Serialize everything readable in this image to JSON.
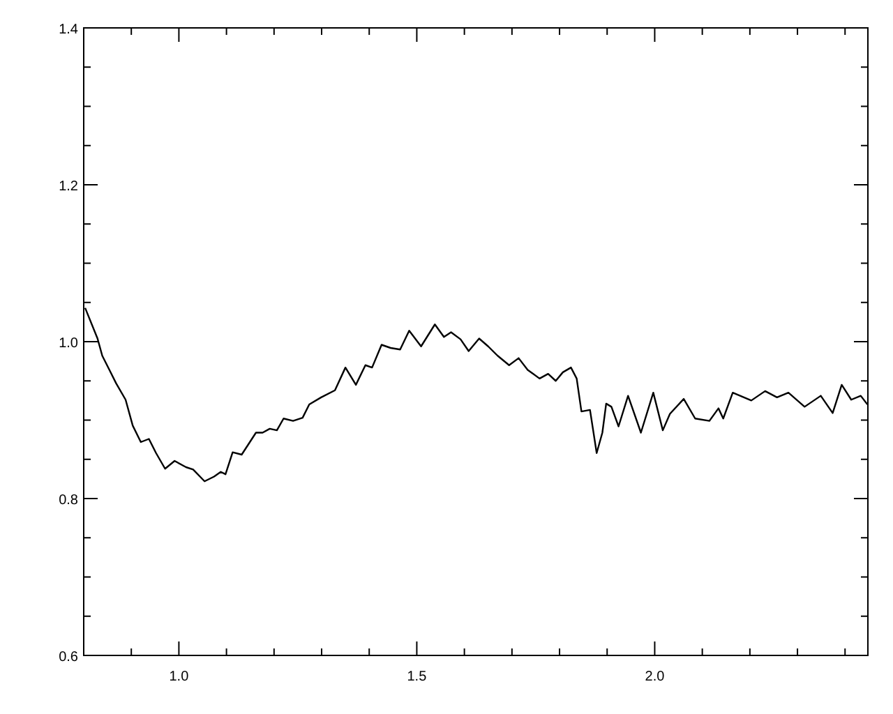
{
  "chart_data": {
    "type": "line",
    "xlim": [
      0.8,
      2.448
    ],
    "ylim": [
      0.6,
      1.4
    ],
    "xticks": [
      {
        "value": 0.9,
        "label": null
      },
      "1.0",
      {
        "value": 1.1,
        "label": null
      },
      {
        "value": 1.2,
        "label": null
      },
      {
        "value": 1.3,
        "label": null
      },
      {
        "value": 1.4,
        "label": null
      },
      {
        "value": 1.5,
        "label": "1.5"
      },
      {
        "value": 1.6,
        "label": null
      },
      {
        "value": 1.7,
        "label": null
      },
      {
        "value": 1.8,
        "label": null
      },
      {
        "value": 1.9,
        "label": null
      },
      {
        "value": 2.0,
        "label": "2.0"
      },
      {
        "value": 2.1,
        "label": null
      },
      {
        "value": 2.2,
        "label": null
      },
      {
        "value": 2.3,
        "label": null
      },
      {
        "value": 2.4,
        "label": null
      }
    ],
    "yticks": [
      {
        "value": 0.6,
        "label": "0.6"
      },
      {
        "value": 0.65,
        "label": null
      },
      {
        "value": 0.7,
        "label": null
      },
      {
        "value": 0.75,
        "label": null
      },
      {
        "value": 0.8,
        "label": "0.8"
      },
      {
        "value": 0.85,
        "label": null
      },
      {
        "value": 0.9,
        "label": null
      },
      {
        "value": 0.95,
        "label": null
      },
      {
        "value": 1.0,
        "label": "1.0"
      },
      {
        "value": 1.05,
        "label": null
      },
      {
        "value": 1.1,
        "label": null
      },
      {
        "value": 1.15,
        "label": null
      },
      {
        "value": 1.2,
        "label": "1.2"
      },
      {
        "value": 1.25,
        "label": null
      },
      {
        "value": 1.3,
        "label": null
      },
      {
        "value": 1.35,
        "label": null
      },
      {
        "value": 1.4,
        "label": "1.4"
      }
    ],
    "grid": false,
    "marker": "none",
    "line_style": "solid",
    "series": [
      {
        "color": "#000000",
        "x": [
          0.803,
          0.829,
          0.839,
          0.854,
          0.868,
          0.888,
          0.903,
          0.92,
          0.937,
          0.952,
          0.971,
          0.991,
          1.015,
          1.03,
          1.054,
          1.074,
          1.088,
          1.098,
          1.113,
          1.132,
          1.162,
          1.176,
          1.191,
          1.206,
          1.22,
          1.24,
          1.26,
          1.274,
          1.299,
          1.328,
          1.35,
          1.372,
          1.392,
          1.406,
          1.426,
          1.445,
          1.465,
          1.484,
          1.509,
          1.538,
          1.557,
          1.572,
          1.592,
          1.609,
          1.631,
          1.65,
          1.67,
          1.694,
          1.714,
          1.733,
          1.758,
          1.776,
          1.792,
          1.807,
          1.824,
          1.836,
          1.846,
          1.864,
          1.878,
          1.89,
          1.898,
          1.909,
          1.924,
          1.944,
          1.971,
          1.997,
          2.017,
          2.032,
          2.061,
          2.085,
          2.115,
          2.134,
          2.144,
          2.164,
          2.203,
          2.232,
          2.257,
          2.281,
          2.315,
          2.349,
          2.374,
          2.393,
          2.413,
          2.433,
          2.447
        ],
        "values": [
          1.043,
          1.004,
          0.982,
          0.964,
          0.947,
          0.926,
          0.893,
          0.872,
          0.876,
          0.858,
          0.838,
          0.848,
          0.84,
          0.837,
          0.822,
          0.828,
          0.834,
          0.831,
          0.859,
          0.856,
          0.884,
          0.884,
          0.889,
          0.887,
          0.902,
          0.899,
          0.903,
          0.92,
          0.929,
          0.938,
          0.967,
          0.945,
          0.97,
          0.967,
          0.996,
          0.992,
          0.99,
          1.014,
          0.994,
          1.022,
          1.006,
          1.012,
          1.003,
          0.988,
          1.004,
          0.994,
          0.982,
          0.97,
          0.979,
          0.964,
          0.953,
          0.959,
          0.95,
          0.961,
          0.967,
          0.953,
          0.911,
          0.913,
          0.858,
          0.884,
          0.921,
          0.917,
          0.892,
          0.931,
          0.884,
          0.935,
          0.887,
          0.908,
          0.927,
          0.902,
          0.899,
          0.915,
          0.902,
          0.935,
          0.925,
          0.937,
          0.929,
          0.935,
          0.917,
          0.931,
          0.909,
          0.945,
          0.926,
          0.931,
          0.92
        ]
      }
    ]
  }
}
